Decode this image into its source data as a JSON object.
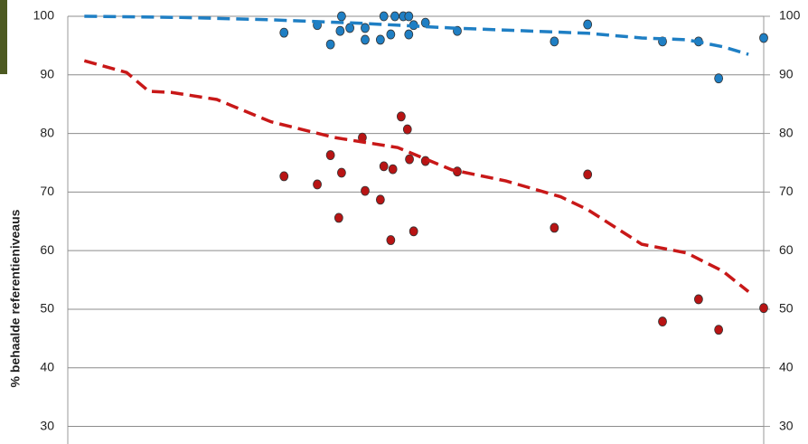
{
  "chart_data": {
    "type": "scatter",
    "y_label": "% behaalde referentieniveaus",
    "xlim": [
      0,
      100
    ],
    "ylim": [
      27,
      100
    ],
    "yticks": [
      30,
      40,
      50,
      60,
      70,
      80,
      90,
      100
    ],
    "grid": true,
    "right_axis_labels": true,
    "series": [
      {
        "mark": "dot",
        "color": "#1f7fc4",
        "x": [
          30.8,
          35.6,
          37.5,
          38.9,
          39.1,
          40.3,
          42.5,
          42.5,
          44.7,
          45.2,
          46.2,
          46.8,
          48,
          48.8,
          48.8,
          49.5,
          51.2,
          55.8,
          69.8,
          74.6,
          85.4,
          90.6,
          93.5,
          100
        ],
        "values": [
          97.2,
          98.5,
          95.2,
          97.5,
          100,
          98,
          96,
          98,
          96,
          100,
          96.9,
          100,
          100,
          96.9,
          100,
          98.5,
          98.9,
          97.5,
          95.7,
          98.6,
          95.7,
          95.7,
          89.4,
          96.3
        ]
      },
      {
        "mark": "dot",
        "color": "#b81414",
        "x": [
          30.8,
          35.6,
          37.5,
          38.7,
          39.1,
          42.1,
          42.5,
          44.7,
          45.2,
          46.2,
          46.5,
          47.7,
          48.6,
          48.9,
          49.5,
          51.2,
          55.8,
          69.8,
          74.6,
          85.4,
          90.6,
          93.5,
          100
        ],
        "values": [
          72.7,
          71.3,
          76.3,
          65.6,
          73.3,
          79.3,
          70.2,
          68.7,
          74.4,
          61.8,
          73.9,
          82.9,
          80.7,
          75.6,
          63.3,
          75.3,
          73.5,
          63.9,
          73,
          47.9,
          51.7,
          46.5,
          50.2
        ]
      },
      {
        "mark": "dashed-line",
        "color": "#1f7fc4",
        "x": [
          2,
          15.9,
          28.9,
          41.9,
          55,
          68.1,
          74.6,
          82.4,
          88.9,
          94.1,
          97.8
        ],
        "values": [
          100,
          99.8,
          99.4,
          98.8,
          98,
          97.4,
          97.1,
          96.3,
          96,
          94.8,
          93.5
        ]
      },
      {
        "mark": "dashed-line",
        "color": "#c81818",
        "x": [
          2,
          8.1,
          11.3,
          14.6,
          21.1,
          28.9,
          38.1,
          47.2,
          55,
          62.8,
          70.7,
          74.6,
          82.4,
          88.9,
          94.1,
          97.8
        ],
        "values": [
          92.4,
          90.4,
          87.2,
          87,
          85.8,
          82,
          79.3,
          77.6,
          73.8,
          71.9,
          69.2,
          67,
          61.1,
          59.6,
          56.5,
          53
        ]
      }
    ]
  }
}
